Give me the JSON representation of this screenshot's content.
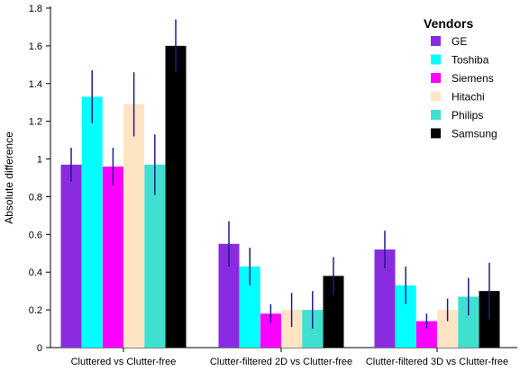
{
  "chart_data": {
    "type": "bar",
    "title": "",
    "xlabel": "",
    "ylabel": "Absolute difference",
    "ylim": [
      0,
      1.8
    ],
    "yticks": [
      "0",
      "0.2",
      "0.4",
      "0.6",
      "0.8",
      "1",
      "1.2",
      "1.4",
      "1.6",
      "1.8"
    ],
    "grid": false,
    "legend_title": "Vendors",
    "legend_position": "top-right",
    "error_bar_color": "#1a1f8c",
    "categories": [
      "Cluttered vs Clutter-free",
      "Clutter-filtered 2D vs Clutter-free",
      "Clutter-filtered 3D vs Clutter-free"
    ],
    "series": [
      {
        "name": "GE",
        "color": "#8a2be2",
        "values": [
          0.97,
          0.55,
          0.52
        ],
        "errors": [
          0.09,
          0.12,
          0.1
        ]
      },
      {
        "name": "Toshiba",
        "color": "#00ffff",
        "values": [
          1.33,
          0.43,
          0.33
        ],
        "errors": [
          0.14,
          0.1,
          0.1
        ]
      },
      {
        "name": "Siemens",
        "color": "#ff00ff",
        "values": [
          0.96,
          0.18,
          0.14
        ],
        "errors": [
          0.1,
          0.05,
          0.04
        ]
      },
      {
        "name": "Hitachi",
        "color": "#ffe4c4",
        "values": [
          1.29,
          0.2,
          0.2
        ],
        "errors": [
          0.17,
          0.09,
          0.06
        ]
      },
      {
        "name": "Philips",
        "color": "#40e0d0",
        "values": [
          0.97,
          0.2,
          0.27
        ],
        "errors": [
          0.16,
          0.1,
          0.1
        ]
      },
      {
        "name": "Samsung",
        "color": "#000000",
        "values": [
          1.6,
          0.38,
          0.3
        ],
        "errors": [
          0.14,
          0.1,
          0.15
        ]
      }
    ]
  }
}
